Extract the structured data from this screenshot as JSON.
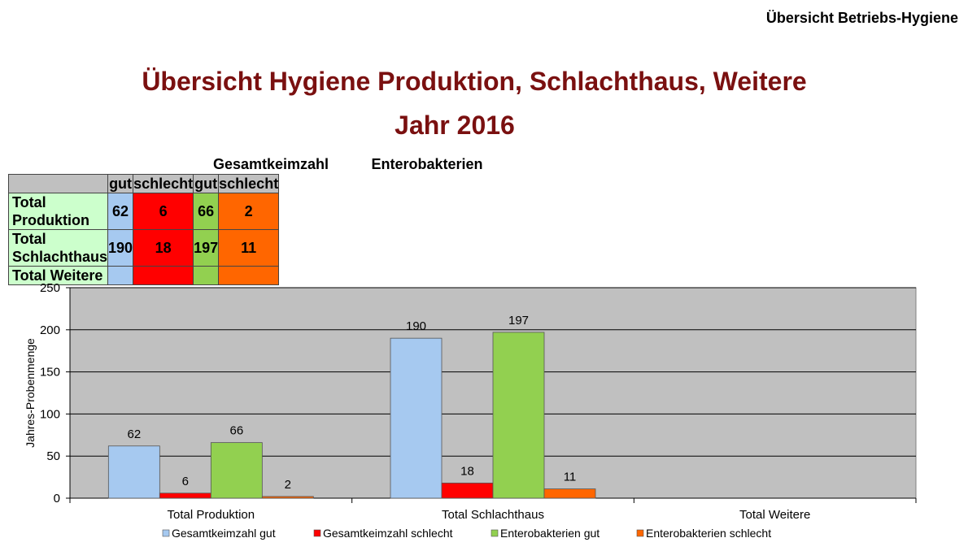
{
  "header": {
    "right_title": "Übersicht Betriebs-Hygiene"
  },
  "titles": {
    "main": "Übersicht Hygiene Produktion, Schlachthaus, Weitere",
    "year": "Jahr 2016"
  },
  "table": {
    "group_headers": [
      "Gesamtkeimzahl",
      "Enterobakterien"
    ],
    "sub_headers": [
      "gut",
      "schlecht",
      "gut",
      "schlecht"
    ],
    "rows": [
      {
        "label": "Total Produktion",
        "values": [
          "62",
          "6",
          "66",
          "2"
        ]
      },
      {
        "label": "Total Schlachthaus",
        "values": [
          "190",
          "18",
          "197",
          "11"
        ]
      },
      {
        "label": "Total Weitere",
        "values": [
          "",
          "",
          "",
          ""
        ]
      }
    ]
  },
  "colors": {
    "gesamt_gut": "#a6c9f0",
    "gesamt_schlecht": "#ff0000",
    "entero_gut": "#92d050",
    "entero_schlecht": "#ff6600",
    "plot_bg": "#c0c0c0",
    "title": "#7a1010"
  },
  "chart_data": {
    "type": "bar",
    "ylabel": "Jahres-Probenmenge",
    "xlabel": "",
    "ylim": [
      0,
      250
    ],
    "yticks": [
      0,
      50,
      100,
      150,
      200,
      250
    ],
    "grid": true,
    "legend_position": "bottom",
    "categories": [
      "Total Produktion",
      "Total Schlachthaus",
      "Total Weitere"
    ],
    "series": [
      {
        "name": "Gesamtkeimzahl gut",
        "color": "#a6c9f0",
        "values": [
          62,
          190,
          null
        ]
      },
      {
        "name": "Gesamtkeimzahl schlecht",
        "color": "#ff0000",
        "values": [
          6,
          18,
          null
        ]
      },
      {
        "name": "Enterobakterien gut",
        "color": "#92d050",
        "values": [
          66,
          197,
          null
        ]
      },
      {
        "name": "Enterobakterien schlecht",
        "color": "#ff6600",
        "values": [
          2,
          11,
          null
        ]
      }
    ]
  }
}
